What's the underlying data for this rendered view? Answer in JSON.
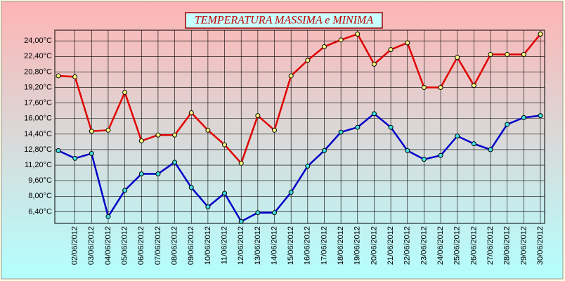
{
  "chart_data": {
    "type": "line",
    "title": "TEMPERATURA MASSIMA e MINIMA",
    "categories": [
      null,
      "02/06/2012",
      "03/06/2012",
      "04/06/2012",
      "05/06/2012",
      "06/06/2012",
      "07/06/2012",
      "08/06/2012",
      "09/06/2012",
      "10/06/2012",
      "11/06/2012",
      "12/06/2012",
      "13/06/2012",
      "14/06/2012",
      "15/06/2012",
      "16/06/2012",
      "17/06/2012",
      "18/06/2012",
      "19/06/2012",
      "20/06/2012",
      "21/06/2012",
      "22/06/2012",
      "23/06/2012",
      "24/06/2012",
      "25/06/2012",
      "26/06/2012",
      "27/06/2012",
      "28/06/2012",
      "29/06/2012",
      "30/06/2012"
    ],
    "series": [
      {
        "color": "#e00000",
        "marker_color": "#ffff80",
        "values": [
          20.4,
          20.3,
          14.7,
          14.8,
          18.7,
          13.7,
          14.3,
          14.3,
          16.6,
          14.8,
          13.3,
          11.4,
          16.3,
          14.8,
          20.4,
          22.0,
          23.4,
          24.1,
          24.7,
          21.6,
          23.1,
          23.8,
          19.2,
          19.2,
          22.3,
          19.4,
          22.6,
          22.6,
          22.6,
          24.7
        ]
      },
      {
        "color": "#0000c8",
        "marker_color": "#40e0e0",
        "values": [
          12.7,
          11.9,
          12.4,
          5.9,
          8.6,
          10.3,
          10.3,
          11.5,
          8.9,
          6.9,
          8.3,
          5.4,
          6.3,
          6.3,
          8.4,
          11.1,
          12.7,
          14.6,
          15.1,
          16.5,
          15.1,
          12.7,
          11.8,
          12.2,
          14.2,
          13.4,
          12.8,
          15.4,
          16.1,
          16.3
        ]
      }
    ],
    "ylim": [
      5.2,
      25.1
    ],
    "yticks": [
      {
        "value": 6.4,
        "label": "6,40°C"
      },
      {
        "value": 8.0,
        "label": "8,00°C"
      },
      {
        "value": 9.6,
        "label": "9,60°C"
      },
      {
        "value": 11.2,
        "label": "11,20°C"
      },
      {
        "value": 12.8,
        "label": "12,80°C"
      },
      {
        "value": 14.4,
        "label": "14,40°C"
      },
      {
        "value": 16.0,
        "label": "16,00°C"
      },
      {
        "value": 17.6,
        "label": "17,60°C"
      },
      {
        "value": 19.2,
        "label": "19,20°C"
      },
      {
        "value": 20.8,
        "label": "20,80°C"
      },
      {
        "value": 22.4,
        "label": "22,40°C"
      },
      {
        "value": 24.0,
        "label": "24,00°C"
      }
    ],
    "grid": true
  }
}
